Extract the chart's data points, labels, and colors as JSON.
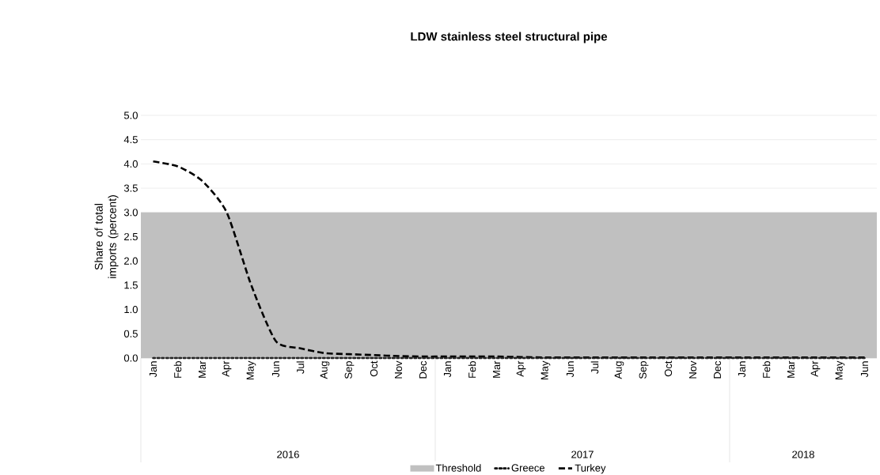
{
  "chart_data": {
    "type": "line",
    "title": "LDW stainless steel structural pipe",
    "ylabel": "Share of total imports (percent)",
    "categories": [
      "Jan",
      "Feb",
      "Mar",
      "Apr",
      "May",
      "Jun",
      "Jul",
      "Aug",
      "Sep",
      "Oct",
      "Nov",
      "Dec",
      "Jan",
      "Feb",
      "Mar",
      "Apr",
      "May",
      "Jun",
      "Jul",
      "Aug",
      "Sep",
      "Oct",
      "Nov",
      "Dec",
      "Jan",
      "Feb",
      "Mar",
      "Apr",
      "May",
      "Jun"
    ],
    "annotations": [
      "2016",
      "2017",
      "2018"
    ],
    "series": [
      {
        "name": "Greece",
        "color": "#000000",
        "line_style": "dotted",
        "values": [
          0,
          0,
          0,
          0,
          0,
          0,
          0,
          0,
          0,
          0,
          0,
          0,
          0,
          0,
          0,
          0,
          0,
          0,
          0,
          0,
          0,
          0,
          0,
          0,
          0,
          0,
          0,
          0,
          0,
          0
        ]
      },
      {
        "name": "Turkey",
        "color": "#000000",
        "line_style": "dashed",
        "values": [
          4.05,
          3.95,
          3.65,
          3.0,
          1.5,
          0.35,
          0.2,
          0.1,
          0.08,
          0.06,
          0.04,
          0.03,
          0.03,
          0.03,
          0.03,
          0.02,
          0.01,
          0.01,
          0.01,
          0.01,
          0.01,
          0.01,
          0.01,
          0.01,
          0.01,
          0.01,
          0.01,
          0.01,
          0.01,
          0.01
        ]
      }
    ],
    "bands": [
      {
        "axis": "y",
        "from": 0,
        "to": 3,
        "label": "Threshold",
        "color": "#c0c0c0"
      }
    ],
    "ylim": [
      0,
      5
    ],
    "yticks": [
      {
        "value": 0,
        "label": "0.0"
      },
      {
        "value": 0.5,
        "label": "0.5"
      },
      {
        "value": 1,
        "label": "1.0"
      },
      {
        "value": 1.5,
        "label": "1.5"
      },
      {
        "value": 2,
        "label": "2.0"
      },
      {
        "value": 2.5,
        "label": "2.5"
      },
      {
        "value": 3,
        "label": "3.0"
      },
      {
        "value": 3.5,
        "label": "3.5"
      },
      {
        "value": 4,
        "label": "4.0"
      },
      {
        "value": 4.5,
        "label": "4.5"
      },
      {
        "value": 5,
        "label": "5.0"
      }
    ],
    "grid": "y",
    "legend": "bottom"
  }
}
